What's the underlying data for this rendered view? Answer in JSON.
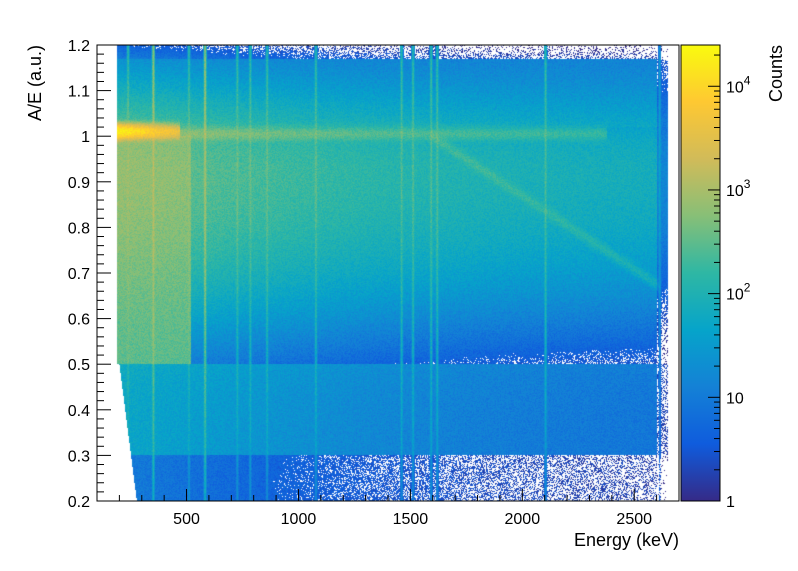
{
  "chart_data": {
    "type": "heatmap",
    "title": "",
    "xlabel": "Energy (keV)",
    "ylabel": "A/E (a.u.)",
    "zlabel": "Counts",
    "xlim": [
      100,
      2700
    ],
    "ylim": [
      0.2,
      1.2
    ],
    "zlim": [
      1,
      25000
    ],
    "z_scale": "log",
    "x_ticks": [
      500,
      1000,
      1500,
      2000,
      2500
    ],
    "y_ticks": [
      0.2,
      0.3,
      0.4,
      0.5,
      0.6,
      0.7,
      0.8,
      0.9,
      1,
      1.1,
      1.2
    ],
    "z_ticks": [
      {
        "value": 1,
        "label": "1"
      },
      {
        "value": 10,
        "label": "10"
      },
      {
        "value": 100,
        "label": "10",
        "exp": "2"
      },
      {
        "value": 1000,
        "label": "10",
        "exp": "3"
      },
      {
        "value": 10000,
        "label": "10",
        "exp": "4"
      }
    ],
    "colormap": [
      "#352a87",
      "#0f5cdd",
      "#1481d6",
      "#06a4ca",
      "#2eb7a4",
      "#87bf77",
      "#d1bb59",
      "#fec832",
      "#f9fb0e"
    ],
    "grid": false,
    "features": {
      "main_band": {
        "y": 1.005,
        "x_range": [
          190,
          2380
        ],
        "peak_counts": 20000
      },
      "low_energy_hotspot": {
        "x_range": [
          190,
          470
        ],
        "y": 1.01,
        "peak_counts": 20000
      },
      "lines_keV": [
        239,
        352,
        511,
        583,
        727,
        785,
        860,
        1078,
        1461,
        1512,
        1593,
        1620,
        2104,
        2614
      ],
      "diagonal_from_1593": {
        "start": [
          1593,
          1.0
        ],
        "end": [
          2620,
          0.67
        ]
      },
      "energy_cutoff": 2650,
      "threshold_keV": 190
    }
  }
}
